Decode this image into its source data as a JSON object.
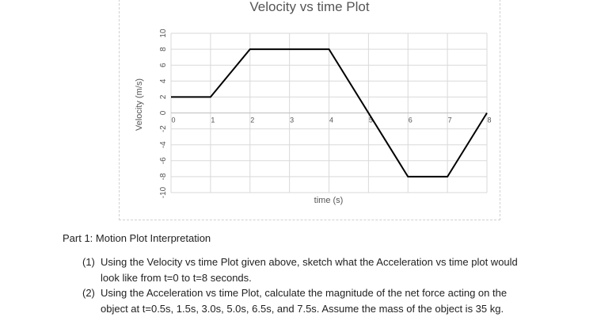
{
  "chart_data": {
    "type": "line",
    "title": "Velocity vs time Plot",
    "xlabel": "time (s)",
    "ylabel": "Velocity (m/s)",
    "xlim": [
      0,
      8
    ],
    "ylim": [
      -10,
      10
    ],
    "x_ticks": [
      0,
      1,
      2,
      3,
      4,
      5,
      6,
      7,
      8
    ],
    "y_ticks": [
      10,
      8,
      6,
      4,
      2,
      0,
      -2,
      -4,
      -6,
      -8,
      -10
    ],
    "grid": true,
    "series": [
      {
        "x": [
          0,
          1,
          2,
          4,
          6,
          7,
          8
        ],
        "y": [
          2,
          2,
          8,
          8,
          -8,
          -8,
          0
        ],
        "color": "#000000"
      }
    ]
  },
  "text": {
    "part_title": "Part 1: Motion Plot Interpretation",
    "q1_num": "(1)",
    "q1_line1": "Using the Velocity vs time Plot given above, sketch what the Acceleration vs time plot would",
    "q1_line2": "look like from t=0 to t=8 seconds.",
    "q2_num": "(2)",
    "q2_line1": "Using the Acceleration vs time Plot, calculate the magnitude of the net force acting on the",
    "q2_line2": "object at t=0.5s, 1.5s, 3.0s, 5.0s, 6.5s, and 7.5s. Assume the mass of the object is 35 kg."
  }
}
